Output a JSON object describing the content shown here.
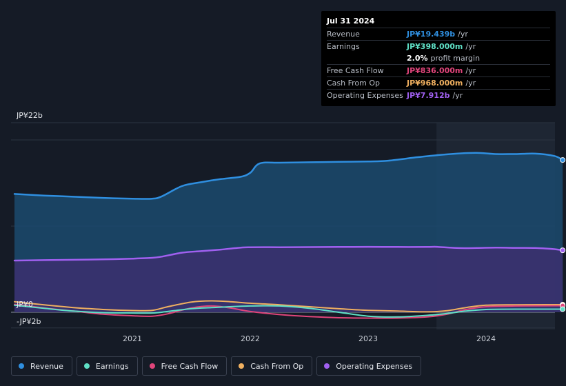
{
  "tooltip": {
    "date": "Jul 31 2024",
    "rows": [
      {
        "label": "Revenue",
        "value": "JP¥19.439b",
        "unit": "/yr",
        "color": "#2f8fe0"
      },
      {
        "label": "Earnings",
        "value": "JP¥398.000m",
        "unit": "/yr",
        "color": "#5fe0c6"
      },
      {
        "label": "",
        "value": "2.0%",
        "unit": "profit margin",
        "color": "#ffffff"
      },
      {
        "label": "Free Cash Flow",
        "value": "JP¥836.000m",
        "unit": "/yr",
        "color": "#e0457b"
      },
      {
        "label": "Cash From Op",
        "value": "JP¥968.000m",
        "unit": "/yr",
        "color": "#f0b060"
      },
      {
        "label": "Operating Expenses",
        "value": "JP¥7.912b",
        "unit": "/yr",
        "color": "#a060f0"
      }
    ]
  },
  "legend": [
    {
      "label": "Revenue",
      "color": "#2f8fe0"
    },
    {
      "label": "Earnings",
      "color": "#5fe0c6"
    },
    {
      "label": "Free Cash Flow",
      "color": "#e0457b"
    },
    {
      "label": "Cash From Op",
      "color": "#f0b060"
    },
    {
      "label": "Operating Expenses",
      "color": "#a060f0"
    }
  ],
  "chart_data": {
    "type": "area",
    "y_unit": "JP¥ billions",
    "ylim": [
      -2,
      22
    ],
    "y_tick_labels": [
      {
        "value": 22,
        "label": "JP¥22b"
      },
      {
        "value": 0,
        "label": "JP¥0"
      },
      {
        "value": -2,
        "label": "-JP¥2b"
      }
    ],
    "x_ticks": [
      {
        "value": 2021,
        "label": "2021"
      },
      {
        "value": 2022,
        "label": "2022"
      },
      {
        "value": 2023,
        "label": "2023"
      },
      {
        "value": 2024,
        "label": "2024"
      }
    ],
    "xlim": [
      2019.83,
      2024.65
    ],
    "forecast_shade_start": 2023.58,
    "series": [
      {
        "name": "Revenue",
        "color": "#2f8fe0",
        "fill": true,
        "points": [
          [
            2020.0,
            15.1
          ],
          [
            2020.25,
            14.9
          ],
          [
            2020.5,
            14.75
          ],
          [
            2020.75,
            14.6
          ],
          [
            2021.0,
            14.5
          ],
          [
            2021.17,
            14.5
          ],
          [
            2021.25,
            14.8
          ],
          [
            2021.42,
            16.1
          ],
          [
            2021.58,
            16.6
          ],
          [
            2021.75,
            17.0
          ],
          [
            2021.92,
            17.3
          ],
          [
            2022.0,
            17.8
          ],
          [
            2022.08,
            19.0
          ],
          [
            2022.25,
            19.1
          ],
          [
            2022.5,
            19.15
          ],
          [
            2022.75,
            19.2
          ],
          [
            2023.0,
            19.25
          ],
          [
            2023.17,
            19.35
          ],
          [
            2023.42,
            19.8
          ],
          [
            2023.58,
            20.05
          ],
          [
            2023.75,
            20.25
          ],
          [
            2023.92,
            20.35
          ],
          [
            2024.08,
            20.2
          ],
          [
            2024.25,
            20.2
          ],
          [
            2024.42,
            20.25
          ],
          [
            2024.58,
            19.95
          ],
          [
            2024.65,
            19.44
          ]
        ]
      },
      {
        "name": "Operating Expenses",
        "color": "#a060f0",
        "fill": true,
        "points": [
          [
            2020.0,
            6.6
          ],
          [
            2020.25,
            6.65
          ],
          [
            2020.5,
            6.7
          ],
          [
            2020.75,
            6.75
          ],
          [
            2021.0,
            6.85
          ],
          [
            2021.17,
            6.95
          ],
          [
            2021.25,
            7.1
          ],
          [
            2021.42,
            7.6
          ],
          [
            2021.58,
            7.8
          ],
          [
            2021.75,
            8.0
          ],
          [
            2021.92,
            8.25
          ],
          [
            2022.0,
            8.3
          ],
          [
            2022.25,
            8.3
          ],
          [
            2022.5,
            8.32
          ],
          [
            2022.75,
            8.33
          ],
          [
            2023.0,
            8.35
          ],
          [
            2023.25,
            8.33
          ],
          [
            2023.5,
            8.33
          ],
          [
            2023.58,
            8.35
          ],
          [
            2023.75,
            8.2
          ],
          [
            2023.92,
            8.2
          ],
          [
            2024.08,
            8.25
          ],
          [
            2024.25,
            8.22
          ],
          [
            2024.42,
            8.2
          ],
          [
            2024.58,
            8.05
          ],
          [
            2024.65,
            7.91
          ]
        ]
      },
      {
        "name": "Cash From Op",
        "color": "#f0b060",
        "fill": false,
        "points": [
          [
            2020.0,
            1.35
          ],
          [
            2020.25,
            0.95
          ],
          [
            2020.5,
            0.6
          ],
          [
            2020.75,
            0.35
          ],
          [
            2021.0,
            0.22
          ],
          [
            2021.17,
            0.25
          ],
          [
            2021.3,
            0.7
          ],
          [
            2021.5,
            1.3
          ],
          [
            2021.67,
            1.45
          ],
          [
            2021.83,
            1.35
          ],
          [
            2022.0,
            1.15
          ],
          [
            2022.25,
            0.95
          ],
          [
            2022.5,
            0.7
          ],
          [
            2022.75,
            0.45
          ],
          [
            2023.0,
            0.25
          ],
          [
            2023.25,
            0.15
          ],
          [
            2023.5,
            0.05
          ],
          [
            2023.67,
            0.2
          ],
          [
            2023.83,
            0.6
          ],
          [
            2024.0,
            0.9
          ],
          [
            2024.25,
            0.95
          ],
          [
            2024.5,
            0.97
          ],
          [
            2024.65,
            0.97
          ]
        ]
      },
      {
        "name": "Free Cash Flow",
        "color": "#e0457b",
        "fill": false,
        "points": [
          [
            2020.0,
            1.0
          ],
          [
            2020.25,
            0.55
          ],
          [
            2020.5,
            0.15
          ],
          [
            2020.75,
            -0.25
          ],
          [
            2021.0,
            -0.45
          ],
          [
            2021.17,
            -0.5
          ],
          [
            2021.3,
            -0.2
          ],
          [
            2021.5,
            0.55
          ],
          [
            2021.67,
            0.8
          ],
          [
            2021.83,
            0.55
          ],
          [
            2022.0,
            0.1
          ],
          [
            2022.25,
            -0.3
          ],
          [
            2022.5,
            -0.55
          ],
          [
            2022.75,
            -0.7
          ],
          [
            2023.0,
            -0.75
          ],
          [
            2023.25,
            -0.75
          ],
          [
            2023.5,
            -0.6
          ],
          [
            2023.67,
            -0.25
          ],
          [
            2023.83,
            0.35
          ],
          [
            2024.0,
            0.7
          ],
          [
            2024.25,
            0.8
          ],
          [
            2024.5,
            0.83
          ],
          [
            2024.65,
            0.84
          ]
        ]
      },
      {
        "name": "Earnings",
        "color": "#5fe0c6",
        "fill": false,
        "points": [
          [
            2020.0,
            0.9
          ],
          [
            2020.25,
            0.5
          ],
          [
            2020.5,
            0.15
          ],
          [
            2020.75,
            -0.05
          ],
          [
            2021.0,
            -0.1
          ],
          [
            2021.17,
            -0.1
          ],
          [
            2021.3,
            0.1
          ],
          [
            2021.5,
            0.45
          ],
          [
            2021.67,
            0.6
          ],
          [
            2021.83,
            0.7
          ],
          [
            2022.0,
            0.8
          ],
          [
            2022.25,
            0.8
          ],
          [
            2022.5,
            0.5
          ],
          [
            2022.75,
            0.0
          ],
          [
            2023.0,
            -0.5
          ],
          [
            2023.25,
            -0.6
          ],
          [
            2023.5,
            -0.4
          ],
          [
            2023.67,
            -0.15
          ],
          [
            2023.83,
            0.15
          ],
          [
            2024.0,
            0.35
          ],
          [
            2024.25,
            0.4
          ],
          [
            2024.5,
            0.4
          ],
          [
            2024.65,
            0.4
          ]
        ]
      }
    ]
  }
}
